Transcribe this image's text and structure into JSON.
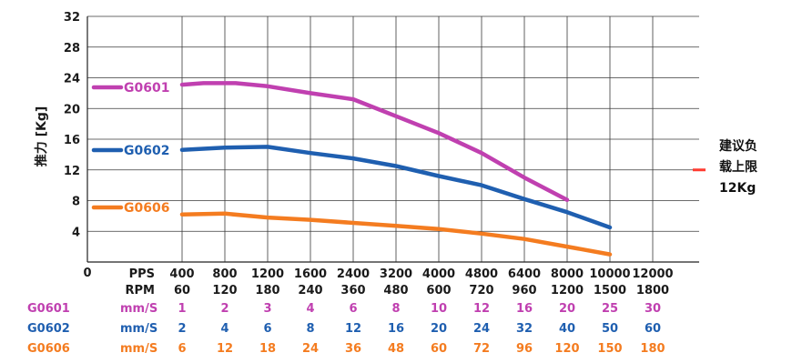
{
  "chart_data": {
    "type": "line",
    "ylabel": "推力 [Kg]",
    "ylim": [
      0,
      32
    ],
    "y_ticks": [
      "0",
      "4",
      "8",
      "12",
      "16",
      "20",
      "24",
      "28",
      "32"
    ],
    "x_row_pps_label": "PPS",
    "x_row_rpm_label": "RPM",
    "pps": [
      "400",
      "800",
      "1200",
      "1600",
      "2400",
      "3200",
      "4000",
      "4800",
      "6400",
      "8000",
      "10000",
      "12000"
    ],
    "rpm": [
      "60",
      "120",
      "180",
      "240",
      "360",
      "480",
      "600",
      "720",
      "960",
      "1200",
      "1500",
      "1800"
    ],
    "grid": true,
    "series": [
      {
        "name": "G0601",
        "color": "#c040b0",
        "unit": "mm/S",
        "speeds": [
          "1",
          "2",
          "3",
          "4",
          "6",
          "8",
          "10",
          "12",
          "16",
          "20",
          "25",
          "30"
        ],
        "points": [
          [
            0,
            23.1
          ],
          [
            0.5,
            23.3
          ],
          [
            1.25,
            23.3
          ],
          [
            2,
            22.9
          ],
          [
            3,
            22.0
          ],
          [
            4,
            21.2
          ],
          [
            5,
            19.0
          ],
          [
            6,
            16.8
          ],
          [
            7,
            14.2
          ],
          [
            8,
            11.0
          ],
          [
            9,
            8.1
          ]
        ]
      },
      {
        "name": "G0602",
        "color": "#1f5fb0",
        "unit": "mm/S",
        "speeds": [
          "2",
          "4",
          "6",
          "8",
          "12",
          "16",
          "20",
          "24",
          "32",
          "40",
          "50",
          "60"
        ],
        "points": [
          [
            0,
            14.6
          ],
          [
            1,
            14.9
          ],
          [
            2,
            15.0
          ],
          [
            3,
            14.2
          ],
          [
            4,
            13.5
          ],
          [
            5,
            12.5
          ],
          [
            6,
            11.2
          ],
          [
            7,
            10.0
          ],
          [
            8,
            8.2
          ],
          [
            9,
            6.5
          ],
          [
            10,
            4.5
          ]
        ]
      },
      {
        "name": "G0606",
        "color": "#f47c20",
        "unit": "mm/S",
        "speeds": [
          "6",
          "12",
          "18",
          "24",
          "36",
          "48",
          "60",
          "72",
          "96",
          "120",
          "150",
          "180"
        ],
        "points": [
          [
            0,
            6.2
          ],
          [
            1,
            6.3
          ],
          [
            2,
            5.8
          ],
          [
            3,
            5.5
          ],
          [
            4,
            5.1
          ],
          [
            5,
            4.7
          ],
          [
            6,
            4.3
          ],
          [
            7,
            3.7
          ],
          [
            8,
            3.0
          ],
          [
            9,
            2.0
          ],
          [
            10,
            1.0
          ]
        ]
      }
    ],
    "annotation": {
      "lines": [
        "建议负",
        "载上限",
        "12Kg"
      ],
      "value": 12,
      "color": "#ff3b30"
    }
  }
}
